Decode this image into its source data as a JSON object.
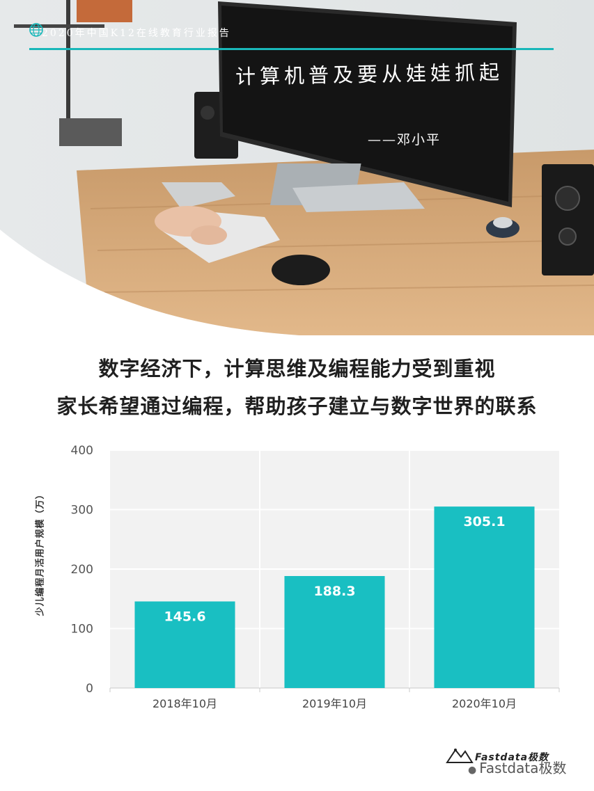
{
  "header": {
    "report_title": "2020年中国K12在线教育行业报告",
    "accent_color": "#19b7b9"
  },
  "quote": {
    "text": "计算机普及要从娃娃抓起",
    "author": "——邓小平"
  },
  "headline": {
    "line1": "数字经济下，计算思维及编程能力受到重视",
    "line2": "家长希望通过编程，帮助孩子建立与数字世界的联系"
  },
  "chart_data": {
    "type": "bar",
    "categories": [
      "2018年10月",
      "2019年10月",
      "2020年10月"
    ],
    "values": [
      145.6,
      188.3,
      305.1
    ],
    "data_labels": [
      "145.6",
      "188.3",
      "305.1"
    ],
    "ylabel": "少儿编程月活用户规模（万）",
    "xlabel": "",
    "ylim": [
      0,
      400
    ],
    "yticks": [
      0,
      100,
      200,
      300,
      400
    ],
    "grid": true,
    "bar_color": "#19bfc2",
    "plot_background": "#f2f2f2"
  },
  "footer": {
    "brand_logo_text": "Fastdata极数",
    "wechat_account": "Fastdata极数"
  }
}
